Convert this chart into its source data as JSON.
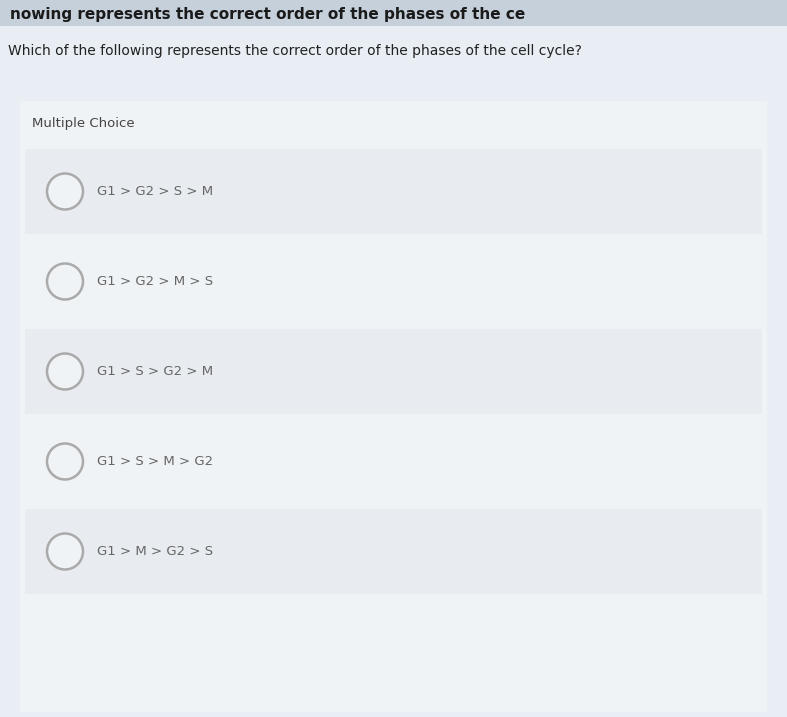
{
  "header_text": "nowing represents the correct order of the phases of the ce",
  "question_text": "Which of the following represents the correct order of the phases of the cell cycle?",
  "section_label": "Multiple Choice",
  "choices": [
    "G1 > G2 > S > M",
    "G1 > G2 > M > S",
    "G1 > S > G2 > M",
    "G1 > S > M > G2",
    "G1 > M > G2 > S"
  ],
  "bg_overall": "#e8eef4",
  "bg_top_bar": "#c5d0da",
  "bg_white_area": "#f0f3f6",
  "bg_choice_odd": "#e8ecf0",
  "bg_choice_even": "#f0f3f6",
  "bg_content_panel": "#e0e6ec",
  "header_text_color": "#1a1a1a",
  "question_text_color": "#222222",
  "section_label_color": "#444444",
  "choice_text_color": "#666666",
  "circle_outer_color": "#aaaaaa",
  "circle_inner_color": "#dde4ea",
  "fig_width": 7.87,
  "fig_height": 7.17,
  "dpi": 100
}
